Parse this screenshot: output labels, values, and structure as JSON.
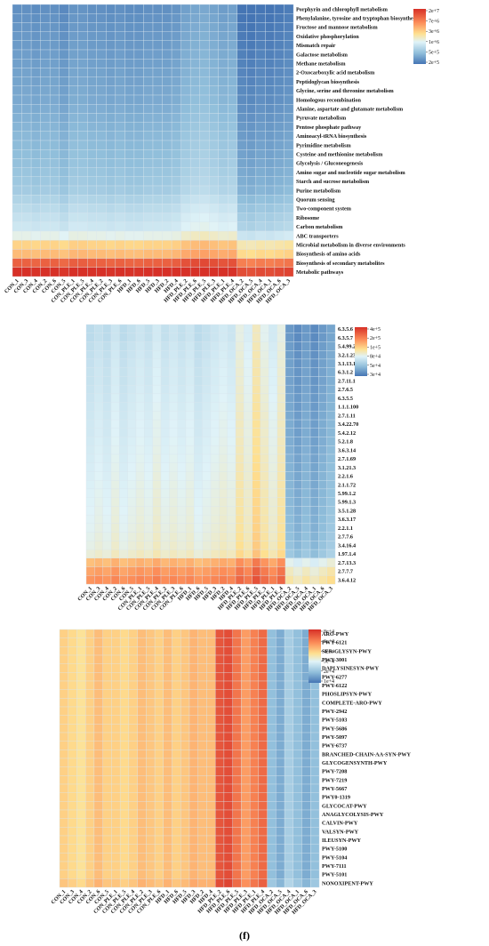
{
  "figure": {
    "caption": "(f)"
  },
  "chart_data": [
    {
      "type": "heatmap",
      "title": "",
      "columns": [
        "CON_1",
        "CON_3",
        "CON_4",
        "CON_2",
        "CON_6",
        "CON_5",
        "CON_PLE_1",
        "CON_PLE_5",
        "CON_PLE_4",
        "CON_PLE_2",
        "CON_PLE_3",
        "CON_PLE_6",
        "HFD_1",
        "HFD_6",
        "HFD_5",
        "HFD_3",
        "HFD_2",
        "HFD_4",
        "HFD_PLE_2",
        "HFD_PLE_6",
        "HFD_PLE_5",
        "HFD_PLE_3",
        "HFD_PLE_1",
        "HFD_PLE_4",
        "HFD_OCA_2",
        "HFD_OCA_5",
        "HFD_OCA_4",
        "HFD_OCA_1",
        "HFD_OCA_6",
        "HFD_OCA_3"
      ],
      "rows": [
        "Porphyrin and chlorophyll metabolism",
        "Phenylalanine, tyrosine and tryptophan biosynthesis",
        "Fructose and mannose metabolism",
        "Oxidative phosphorylation",
        "Mismatch repair",
        "Galactose metabolism",
        "Methane metabolism",
        "2-Oxocarboxylic acid metabolism",
        "Peptidoglycan biosynthesis",
        "Glycine, serine and threonine metabolism",
        "Homologous recombination",
        "Alanine, aspartate and glutamate metabolism",
        "Pyruvate metabolism",
        "Pentose phosphate pathway",
        "Aminoacyl-tRNA biosynthesis",
        "Pyrimidine metabolism",
        "Cysteine and methionine metabolism",
        "Glycolysis / Gluconeogenesis",
        "Amino sugar and nucleotide sugar metabolism",
        "Starch and sucrose metabolism",
        "Purine metabolism",
        "Quorum sensing",
        "Two-component system",
        "Ribosome",
        "Carbon metabolism",
        "ABC transporters",
        "Microbial metabolism in diverse environments",
        "Biosynthesis of amino acids",
        "Biosynthesis of secondary metabolites",
        "Metabolic pathways"
      ],
      "row_values": [
        260000.0,
        270000.0,
        280000.0,
        290000.0,
        300000.0,
        310000.0,
        320000.0,
        330000.0,
        340000.0,
        350000.0,
        360000.0,
        380000.0,
        400000.0,
        420000.0,
        440000.0,
        460000.0,
        480000.0,
        500000.0,
        530000.0,
        560000.0,
        600000.0,
        700000.0,
        800000.0,
        900000.0,
        1000000.0,
        1400000.0,
        3000000.0,
        4000000.0,
        12000000.0,
        23000000.0
      ],
      "column_factors": [
        1.1,
        1.1,
        1.05,
        1.1,
        1.1,
        1.0,
        1.15,
        1.15,
        1.1,
        1.1,
        1.05,
        1.1,
        1.05,
        1.05,
        1.1,
        1.1,
        1.1,
        1.15,
        1.35,
        1.45,
        1.5,
        1.4,
        1.3,
        1.35,
        0.75,
        0.72,
        0.78,
        0.75,
        0.8,
        0.85
      ],
      "legend": {
        "ticks": [
          "2e+7",
          "7e+6",
          "3e+6",
          "1e+6",
          "5e+5",
          "2e+5"
        ],
        "min": 200000.0,
        "max": 25000000.0
      }
    },
    {
      "type": "heatmap",
      "title": "",
      "columns": [
        "CON_1",
        "CON_3",
        "CON_4",
        "CON_2",
        "CON_6",
        "CON_5",
        "CON_PLE_1",
        "CON_PLE_5",
        "CON_PLE_4",
        "CON_PLE_2",
        "CON_PLE_3",
        "CON_PLE_6",
        "HFD_1",
        "HFD_6",
        "HFD_5",
        "HFD_3",
        "HFD_2",
        "HFD_4",
        "HFD_PLE_2",
        "HFD_PLE_6",
        "HFD_PLE_5",
        "HFD_PLE_3",
        "HFD_PLE_1",
        "HFD_PLE_4",
        "HFD_OCA_2",
        "HFD_OCA_5",
        "HFD_OCA_4",
        "HFD_OCA_1",
        "HFD_OCA_6",
        "HFD_OCA_3"
      ],
      "rows": [
        "6.3.5.6",
        "6.3.5.7",
        "5.4.99.23",
        "3.2.1.23",
        "3.1.13.18",
        "6.3.1.2",
        "2.7.11.1",
        "2.7.6.5",
        "6.3.5.5",
        "1.1.1.100",
        "2.7.1.11",
        "3.4.22.70",
        "5.4.2.12",
        "5.2.1.8",
        "3.6.3.14",
        "2.7.1.69",
        "3.1.21.3",
        "2.2.1.6",
        "2.1.1.72",
        "5.99.1.2",
        "5.99.1.3",
        "3.5.1.28",
        "3.6.3.17",
        "2.2.1.1",
        "2.7.7.6",
        "3.4.16.4",
        "1.97.1.4",
        "2.7.13.3",
        "2.7.7.7",
        "3.6.4.12"
      ],
      "row_values": [
        70000.0,
        70000.0,
        72000.0,
        73000.0,
        74000.0,
        75000.0,
        75000.0,
        76000.0,
        77000.0,
        78000.0,
        79000.0,
        80000.0,
        80000.0,
        81000.0,
        82000.0,
        83000.0,
        84000.0,
        85000.0,
        86000.0,
        87000.0,
        88000.0,
        89000.0,
        90000.0,
        91000.0,
        93000.0,
        95000.0,
        100000.0,
        160000.0,
        190000.0,
        210000.0
      ],
      "column_factors": [
        0.95,
        1.0,
        0.95,
        1.05,
        0.95,
        1.0,
        1.05,
        1.0,
        1.1,
        1.0,
        1.05,
        1.0,
        1.05,
        0.95,
        1.0,
        1.05,
        1.1,
        1.05,
        1.3,
        1.15,
        1.5,
        1.25,
        1.1,
        1.3,
        0.55,
        0.5,
        0.55,
        0.5,
        0.55,
        0.6
      ],
      "legend": {
        "ticks": [
          "4e+5",
          "2e+5",
          "1e+5",
          "8e+4",
          "5e+4",
          "3e+4"
        ],
        "min": 30000.0,
        "max": 400000.0
      }
    },
    {
      "type": "heatmap",
      "title": "",
      "columns": [
        "CON_1",
        "CON_3",
        "CON_4",
        "CON_2",
        "CON_6",
        "CON_5",
        "CON_PLE_1",
        "CON_PLE_5",
        "CON_PLE_4",
        "CON_PLE_2",
        "CON_PLE_3",
        "CON_PLE_6",
        "HFD_1",
        "HFD_6",
        "HFD_5",
        "HFD_3",
        "HFD_2",
        "HFD_4",
        "HFD_PLE_2",
        "HFD_PLE_6",
        "HFD_PLE_5",
        "HFD_PLE_3",
        "HFD_PLE_1",
        "HFD_PLE_4",
        "HFD_OCA_2",
        "HFD_OCA_5",
        "HFD_OCA_4",
        "HFD_OCA_1",
        "HFD_OCA_6",
        "HFD_OCA_3"
      ],
      "rows": [
        "ARO-PWY",
        "PWY-6121",
        "SER-GLYSYN-PWY",
        "PWY-3001",
        "DAPLYSINESYN-PWY",
        "PWY-6277",
        "PWY-6122",
        "PHOSLIPSYN-PWY",
        "COMPLETE-ARO-PWY",
        "PWY-2942",
        "PWY-5103",
        "PWY-5686",
        "PWY-5097",
        "PWY-6737",
        "BRANCHED-CHAIN-AA-SYN-PWY",
        "GLYCOGENSYNTH-PWY",
        "PWY-7208",
        "PWY-7219",
        "PWY-5667",
        "PWY0-1319",
        "GLYCOCAT-PWY",
        "ANAGLYCOLYSIS-PWY",
        "CALVIN-PWY",
        "VALSYN-PWY",
        "ILEUSYN-PWY",
        "PWY-5100",
        "PWY-5104",
        "PWY-7111",
        "PWY-5101",
        "NONOXIPENT-PWY"
      ],
      "row_values": [
        34000.0,
        34000.0,
        34000.0,
        34000.0,
        34000.0,
        34000.0,
        34000.0,
        34000.0,
        34000.0,
        34000.0,
        34000.0,
        34000.0,
        34000.0,
        34000.0,
        34000.0,
        34000.0,
        34000.0,
        34000.0,
        34000.0,
        34000.0,
        34000.0,
        34000.0,
        34000.0,
        34000.0,
        34000.0,
        34000.0,
        34000.0,
        34000.0,
        34000.0,
        36000.0
      ],
      "column_factors": [
        1.0,
        0.95,
        0.9,
        1.0,
        1.1,
        1.0,
        1.0,
        0.95,
        1.0,
        1.1,
        1.05,
        1.0,
        1.1,
        1.0,
        1.05,
        1.15,
        1.1,
        1.1,
        1.9,
        2.0,
        1.6,
        1.3,
        1.5,
        1.7,
        0.45,
        0.4,
        0.5,
        0.45,
        0.4,
        0.45
      ],
      "legend": {
        "ticks": [
          "8e+4",
          "6e+4",
          "4e+4",
          "3e+4",
          "2e+4",
          "1e+4"
        ],
        "min": 10000.0,
        "max": 80000.0
      }
    }
  ]
}
